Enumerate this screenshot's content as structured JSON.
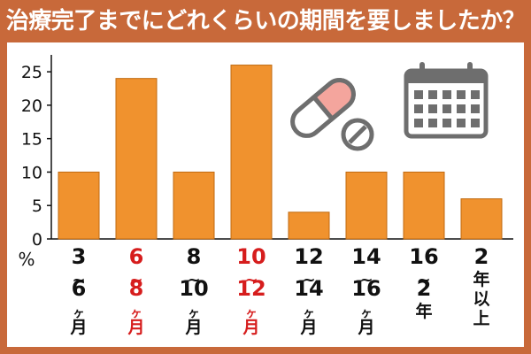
{
  "title": "治療完了までにどれくらいの期間を要しましたか？",
  "colors": {
    "background": "#c8693a",
    "bar": "#f0922e",
    "bar_stroke": "#c06a10",
    "label_default": "#111111",
    "label_highlight": "#d61d1d",
    "icon_gray": "#6e6e6e",
    "pill_pink": "#f4a59d"
  },
  "icons": [
    "pill-capsule-icon",
    "pill-tablet-icon",
    "calendar-icon"
  ],
  "chart_data": {
    "type": "bar",
    "title": "",
    "xlabel": "",
    "ylabel": "%",
    "ylim": [
      0,
      27
    ],
    "yticks": [
      0,
      5,
      10,
      15,
      20,
      25
    ],
    "grid": false,
    "categories": [
      {
        "lines": [
          "3",
          "~",
          "6",
          "ヶ",
          "月"
        ],
        "highlight": false
      },
      {
        "lines": [
          "6",
          "~",
          "8",
          "ヶ",
          "月"
        ],
        "highlight": true
      },
      {
        "lines": [
          "8",
          "~",
          "10",
          "ヶ",
          "月"
        ],
        "highlight": false
      },
      {
        "lines": [
          "10",
          "~",
          "12",
          "ヶ",
          "月"
        ],
        "highlight": true
      },
      {
        "lines": [
          "12",
          "~",
          "14",
          "ヶ",
          "月"
        ],
        "highlight": false
      },
      {
        "lines": [
          "14",
          "~",
          "16",
          "ヶ",
          "月"
        ],
        "highlight": false
      },
      {
        "lines": [
          "16",
          "~",
          "2",
          "年"
        ],
        "highlight": false
      },
      {
        "lines": [
          "2",
          "年",
          "以",
          "上"
        ],
        "highlight": false
      }
    ],
    "values": [
      10,
      24,
      10,
      26,
      4,
      10,
      10,
      6
    ]
  }
}
